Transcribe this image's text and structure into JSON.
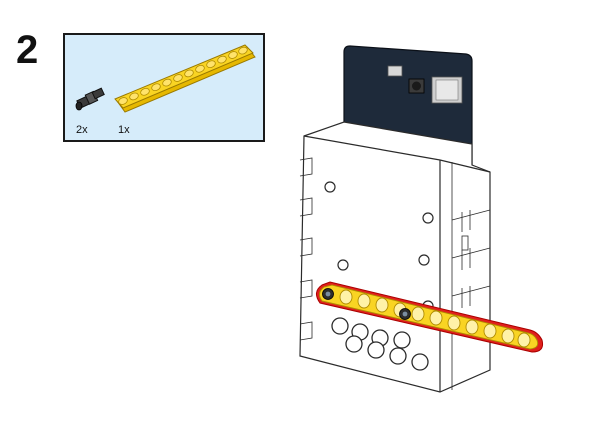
{
  "step": {
    "number": "2"
  },
  "parts": [
    {
      "name": "connector-pin",
      "quantity": "2x"
    },
    {
      "name": "yellow-beam",
      "quantity": "1x"
    }
  ],
  "colors": {
    "beam_yellow": "#f9d423",
    "beam_outline": "#c8a000",
    "highlight_red": "#e0201c",
    "board_dark": "#1e2a3a",
    "parts_bg": "#d6ecfa",
    "pin_dark": "#2d2d2d",
    "case_white": "#ffffff"
  }
}
